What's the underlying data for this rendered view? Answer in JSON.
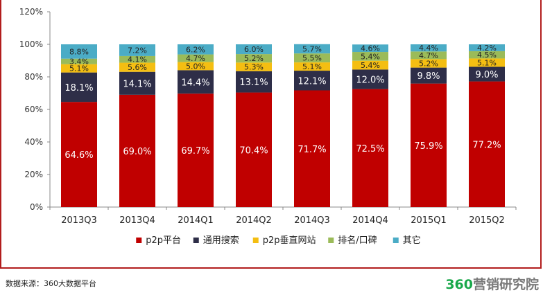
{
  "chart_data": {
    "type": "stacked-bar",
    "categories": [
      "2013Q3",
      "2013Q4",
      "2014Q1",
      "2014Q2",
      "2014Q3",
      "2014Q4",
      "2015Q1",
      "2015Q2"
    ],
    "ylim": [
      0,
      120
    ],
    "yticks": [
      0,
      20,
      40,
      60,
      80,
      100,
      120
    ],
    "ytick_labels": [
      "0%",
      "20%",
      "40%",
      "60%",
      "80%",
      "100%",
      "120%"
    ],
    "series": [
      {
        "name": "p2p平台",
        "color": "#c00000",
        "values": [
          64.6,
          69.0,
          69.7,
          70.4,
          71.7,
          72.5,
          75.9,
          77.2
        ],
        "labels": [
          "64.6%",
          "69.0%",
          "69.7%",
          "70.4%",
          "71.7%",
          "72.5%",
          "75.9%",
          "77.2%"
        ]
      },
      {
        "name": "通用搜索",
        "color": "#2e2e48",
        "values": [
          18.1,
          14.1,
          14.4,
          13.1,
          12.1,
          12.0,
          9.8,
          9.0
        ],
        "labels": [
          "18.1%",
          "14.1%",
          "14.4%",
          "13.1%",
          "12.1%",
          "12.0%",
          "9.8%",
          "9.0%"
        ]
      },
      {
        "name": "p2p垂直网站",
        "color": "#f4be12",
        "values": [
          5.1,
          5.6,
          5.0,
          5.3,
          5.1,
          5.4,
          5.2,
          5.1
        ],
        "labels": [
          "5.1%",
          "5.6%",
          "5.0%",
          "5.3%",
          "5.1%",
          "5.4%",
          "5.2%",
          "5.1%"
        ]
      },
      {
        "name": "排名/口碑",
        "color": "#9bbb59",
        "values": [
          3.4,
          4.1,
          4.7,
          5.2,
          5.5,
          5.4,
          4.7,
          4.5
        ],
        "labels": [
          "3.4%",
          "4.1%",
          "4.7%",
          "5.2%",
          "5.5%",
          "5.4%",
          "4.7%",
          "4.5%"
        ]
      },
      {
        "name": "其它",
        "color": "#4bacc6",
        "values": [
          8.8,
          7.2,
          6.2,
          6.0,
          5.7,
          4.6,
          4.4,
          4.2
        ],
        "labels": [
          "8.8%",
          "7.2%",
          "6.2%",
          "6.0%",
          "5.7%",
          "4.6%",
          "4.4%",
          "4.2%"
        ]
      }
    ],
    "legend_position": "bottom",
    "grid": false
  },
  "footer": {
    "source": "数据来源：360大数据平台",
    "brand_number": "360",
    "brand_text": "营销研究院"
  }
}
